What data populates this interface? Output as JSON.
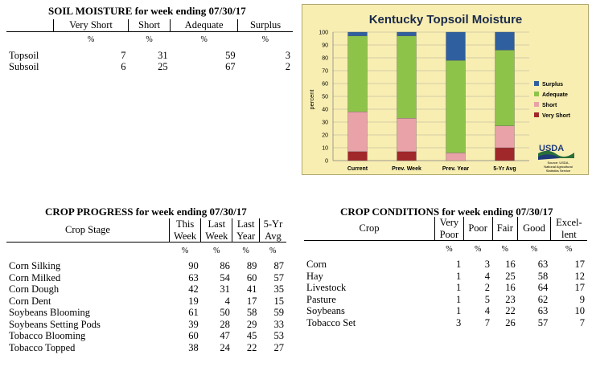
{
  "soil_moisture": {
    "title": "SOIL MOISTURE for week ending 07/30/17",
    "columns": [
      "Very Short",
      "Short",
      "Adequate",
      "Surplus"
    ],
    "unit_row": [
      "%",
      "%",
      "%",
      "%"
    ],
    "rows": [
      {
        "label": "Topsoil",
        "values": [
          "7",
          "31",
          "59",
          "3"
        ]
      },
      {
        "label": "Subsoil",
        "values": [
          "6",
          "25",
          "67",
          "2"
        ]
      }
    ]
  },
  "crop_progress": {
    "title": "CROP PROGRESS for week ending 07/30/17",
    "stage_header": "Crop Stage",
    "columns": [
      {
        "line1": "This",
        "line2": "Week"
      },
      {
        "line1": "Last",
        "line2": "Week"
      },
      {
        "line1": "Last",
        "line2": "Year"
      },
      {
        "line1": "5-Yr",
        "line2": "Avg"
      }
    ],
    "unit_row": [
      "%",
      "%",
      "%",
      "%"
    ],
    "rows": [
      {
        "label": "Corn Silking",
        "values": [
          "90",
          "86",
          "89",
          "87"
        ]
      },
      {
        "label": "Corn Milked",
        "values": [
          "63",
          "54",
          "60",
          "57"
        ]
      },
      {
        "label": "Corn Dough",
        "values": [
          "42",
          "31",
          "41",
          "35"
        ]
      },
      {
        "label": "Corn Dent",
        "values": [
          "19",
          "4",
          "17",
          "15"
        ]
      },
      {
        "label": "Soybeans Blooming",
        "values": [
          "61",
          "50",
          "58",
          "59"
        ]
      },
      {
        "label": "Soybeans Setting Pods",
        "values": [
          "39",
          "28",
          "29",
          "33"
        ]
      },
      {
        "label": "Tobacco Blooming",
        "values": [
          "60",
          "47",
          "45",
          "53"
        ]
      },
      {
        "label": "Tobacco Topped",
        "values": [
          "38",
          "24",
          "22",
          "27"
        ]
      }
    ]
  },
  "crop_conditions": {
    "title": "CROP CONDITIONS for week ending 07/30/17",
    "crop_header": "Crop",
    "columns": [
      {
        "line1": "Very",
        "line2": "Poor"
      },
      {
        "line1": "Poor",
        "line2": ""
      },
      {
        "line1": "Fair",
        "line2": ""
      },
      {
        "line1": "Good",
        "line2": ""
      },
      {
        "line1": "Excel-",
        "line2": "lent"
      }
    ],
    "unit_row": [
      "%",
      "%",
      "%",
      "%",
      "%"
    ],
    "rows": [
      {
        "label": "Corn",
        "values": [
          "1",
          "3",
          "16",
          "63",
          "17"
        ]
      },
      {
        "label": "Hay",
        "values": [
          "1",
          "4",
          "25",
          "58",
          "12"
        ]
      },
      {
        "label": "Livestock",
        "values": [
          "1",
          "2",
          "16",
          "64",
          "17"
        ]
      },
      {
        "label": "Pasture",
        "values": [
          "1",
          "5",
          "23",
          "62",
          "9"
        ]
      },
      {
        "label": "Soybeans",
        "values": [
          "1",
          "4",
          "22",
          "63",
          "10"
        ]
      },
      {
        "label": "Tobacco Set",
        "values": [
          "3",
          "7",
          "26",
          "57",
          "7"
        ]
      }
    ]
  },
  "chart_data": {
    "type": "bar",
    "stacked": true,
    "title": "Kentucky Topsoil Moisture",
    "ylabel": "percent",
    "xlabel": "",
    "ylim": [
      0,
      100
    ],
    "yticks": [
      0,
      10,
      20,
      30,
      40,
      50,
      60,
      70,
      80,
      90,
      100
    ],
    "categories": [
      "Current",
      "Prev. Week",
      "Prev. Year",
      "5-Yr Avg"
    ],
    "series": [
      {
        "name": "Very Short",
        "color": "#a0282a",
        "values": [
          7,
          7,
          0,
          10
        ]
      },
      {
        "name": "Short",
        "color": "#e8a2a8",
        "values": [
          31,
          26,
          6,
          17
        ]
      },
      {
        "name": "Adequate",
        "color": "#8ec34a",
        "values": [
          59,
          64,
          72,
          59
        ]
      },
      {
        "name": "Surplus",
        "color": "#2f5f9e",
        "values": [
          3,
          3,
          22,
          14
        ]
      }
    ],
    "legend_position": "right",
    "legend_order": [
      "Surplus",
      "Adequate",
      "Short",
      "Very Short"
    ],
    "grid": true,
    "logo_text": "USDA",
    "source_lines": [
      "Source: USDA,",
      "National Agricultural",
      "Statistics Service"
    ]
  }
}
